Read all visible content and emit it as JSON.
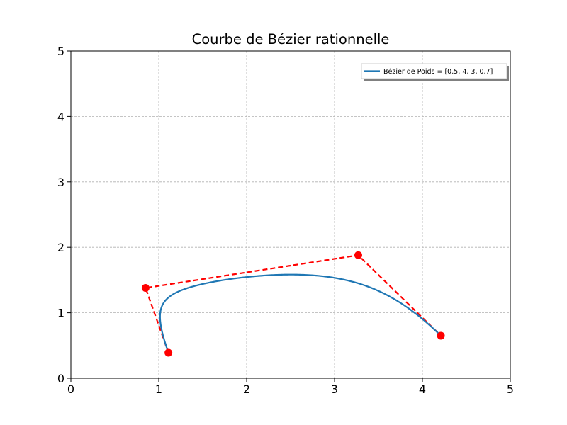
{
  "chart_data": {
    "type": "line",
    "title": "Courbe de Bézier rationnelle",
    "xlabel": "",
    "ylabel": "",
    "xlim": [
      0,
      5
    ],
    "ylim": [
      0,
      5
    ],
    "xticks": [
      "0",
      "1",
      "2",
      "3",
      "4",
      "5"
    ],
    "yticks": [
      "0",
      "1",
      "2",
      "3",
      "4",
      "5"
    ],
    "grid": true,
    "legend_position": "top-right",
    "control_points": {
      "x": [
        1.11,
        0.85,
        3.27,
        4.21
      ],
      "y": [
        0.39,
        1.38,
        1.88,
        0.65
      ],
      "weights": [
        0.5,
        4,
        3,
        0.7
      ],
      "style": "red dashed polygon with markers"
    },
    "series": [
      {
        "name": "Bézier de Poids = [0.5, 4, 3, 0.7]",
        "kind": "rational-bezier-curve",
        "color": "#1f77b4"
      }
    ],
    "colors": {
      "curve": "#1f77b4",
      "control": "#ff0000",
      "grid": "#b0b0b0"
    }
  }
}
